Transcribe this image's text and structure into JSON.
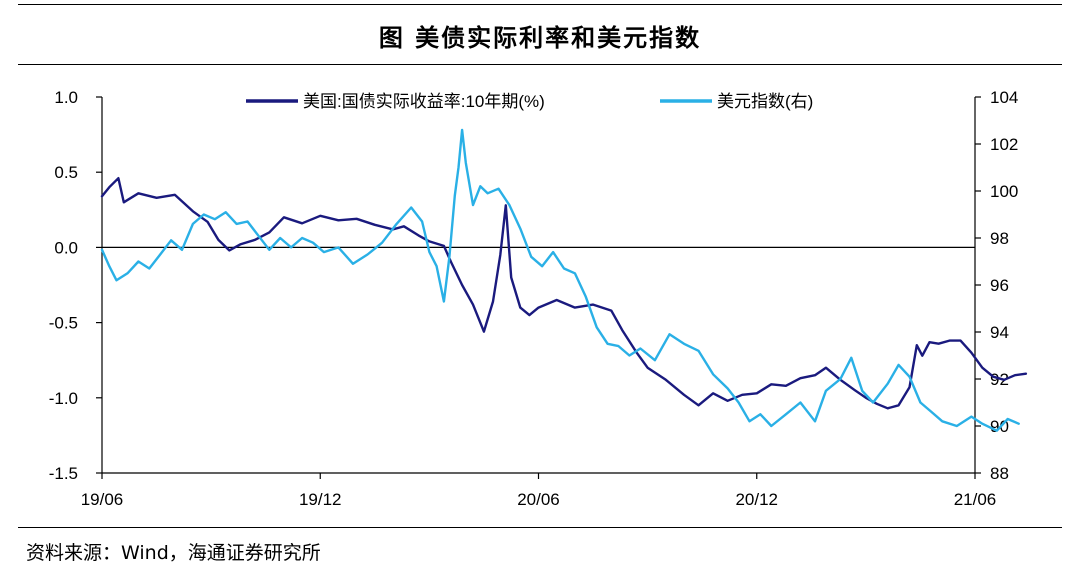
{
  "title": "图  美债实际利率和美元指数",
  "source": "资料来源：Wind，海通证券研究所",
  "chart_data": {
    "type": "line",
    "title": "图  美债实际利率和美元指数",
    "x_ticks": [
      "19/06",
      "19/12",
      "20/06",
      "20/12",
      "21/06"
    ],
    "y_left": {
      "ticks": [
        "1.0",
        "0.5",
        "0.0",
        "-0.5",
        "-1.0",
        "-1.5"
      ],
      "range": [
        -1.5,
        1.0
      ]
    },
    "y_right": {
      "ticks": [
        "104",
        "102",
        "100",
        "98",
        "96",
        "94",
        "92",
        "90",
        "88"
      ],
      "range": [
        88,
        104
      ]
    },
    "grid": false,
    "legend_position": "top",
    "x_range_months": [
      0,
      24
    ],
    "series": [
      {
        "name": "美国:国债实际收益率:10年期(%)",
        "axis": "left",
        "color": "#1a1a7e",
        "points": [
          [
            0.0,
            0.34
          ],
          [
            0.2,
            0.4
          ],
          [
            0.45,
            0.46
          ],
          [
            0.6,
            0.3
          ],
          [
            1.0,
            0.36
          ],
          [
            1.5,
            0.33
          ],
          [
            2.0,
            0.35
          ],
          [
            2.5,
            0.24
          ],
          [
            2.9,
            0.17
          ],
          [
            3.2,
            0.05
          ],
          [
            3.5,
            -0.02
          ],
          [
            3.8,
            0.02
          ],
          [
            4.2,
            0.05
          ],
          [
            4.6,
            0.1
          ],
          [
            5.0,
            0.2
          ],
          [
            5.5,
            0.16
          ],
          [
            6.0,
            0.21
          ],
          [
            6.5,
            0.18
          ],
          [
            7.0,
            0.19
          ],
          [
            7.5,
            0.15
          ],
          [
            8.0,
            0.12
          ],
          [
            8.3,
            0.14
          ],
          [
            8.7,
            0.08
          ],
          [
            9.0,
            0.04
          ],
          [
            9.4,
            0.01
          ],
          [
            9.6,
            -0.1
          ],
          [
            9.9,
            -0.25
          ],
          [
            10.2,
            -0.38
          ],
          [
            10.5,
            -0.56
          ],
          [
            10.75,
            -0.36
          ],
          [
            10.95,
            -0.05
          ],
          [
            11.1,
            0.28
          ],
          [
            11.25,
            -0.2
          ],
          [
            11.5,
            -0.4
          ],
          [
            11.75,
            -0.45
          ],
          [
            12.0,
            -0.4
          ],
          [
            12.5,
            -0.35
          ],
          [
            13.0,
            -0.4
          ],
          [
            13.5,
            -0.38
          ],
          [
            14.0,
            -0.42
          ],
          [
            14.3,
            -0.55
          ],
          [
            14.7,
            -0.7
          ],
          [
            15.0,
            -0.8
          ],
          [
            15.5,
            -0.88
          ],
          [
            16.0,
            -0.98
          ],
          [
            16.4,
            -1.05
          ],
          [
            16.8,
            -0.97
          ],
          [
            17.2,
            -1.02
          ],
          [
            17.6,
            -0.98
          ],
          [
            18.0,
            -0.97
          ],
          [
            18.4,
            -0.91
          ],
          [
            18.8,
            -0.92
          ],
          [
            19.2,
            -0.87
          ],
          [
            19.6,
            -0.85
          ],
          [
            19.9,
            -0.8
          ],
          [
            20.3,
            -0.88
          ],
          [
            20.7,
            -0.95
          ],
          [
            21.0,
            -1.0
          ],
          [
            21.3,
            -1.04
          ],
          [
            21.6,
            -1.07
          ],
          [
            21.9,
            -1.05
          ],
          [
            22.2,
            -0.93
          ],
          [
            22.4,
            -0.65
          ],
          [
            22.55,
            -0.72
          ],
          [
            22.75,
            -0.63
          ],
          [
            23.0,
            -0.64
          ],
          [
            23.3,
            -0.62
          ],
          [
            23.6,
            -0.62
          ],
          [
            23.9,
            -0.7
          ],
          [
            24.2,
            -0.8
          ],
          [
            24.5,
            -0.86
          ],
          [
            24.8,
            -0.88
          ],
          [
            25.1,
            -0.85
          ],
          [
            25.4,
            -0.84
          ]
        ]
      },
      {
        "name": "美元指数(右)",
        "axis": "right",
        "color": "#2ab0e6",
        "points": [
          [
            0.0,
            97.5
          ],
          [
            0.2,
            96.8
          ],
          [
            0.4,
            96.2
          ],
          [
            0.7,
            96.5
          ],
          [
            1.0,
            97.0
          ],
          [
            1.3,
            96.7
          ],
          [
            1.6,
            97.3
          ],
          [
            1.9,
            97.9
          ],
          [
            2.2,
            97.5
          ],
          [
            2.5,
            98.6
          ],
          [
            2.8,
            99.0
          ],
          [
            3.1,
            98.8
          ],
          [
            3.4,
            99.1
          ],
          [
            3.7,
            98.6
          ],
          [
            4.0,
            98.7
          ],
          [
            4.3,
            98.1
          ],
          [
            4.6,
            97.5
          ],
          [
            4.9,
            98.0
          ],
          [
            5.2,
            97.6
          ],
          [
            5.5,
            98.0
          ],
          [
            5.8,
            97.8
          ],
          [
            6.1,
            97.4
          ],
          [
            6.5,
            97.6
          ],
          [
            6.9,
            96.9
          ],
          [
            7.3,
            97.3
          ],
          [
            7.7,
            97.8
          ],
          [
            8.1,
            98.6
          ],
          [
            8.5,
            99.3
          ],
          [
            8.8,
            98.7
          ],
          [
            9.0,
            97.4
          ],
          [
            9.2,
            96.8
          ],
          [
            9.4,
            95.3
          ],
          [
            9.55,
            97.2
          ],
          [
            9.7,
            99.8
          ],
          [
            9.8,
            101.0
          ],
          [
            9.9,
            102.6
          ],
          [
            10.0,
            101.2
          ],
          [
            10.2,
            99.4
          ],
          [
            10.4,
            100.2
          ],
          [
            10.6,
            99.9
          ],
          [
            10.9,
            100.1
          ],
          [
            11.2,
            99.4
          ],
          [
            11.5,
            98.4
          ],
          [
            11.8,
            97.2
          ],
          [
            12.1,
            96.8
          ],
          [
            12.4,
            97.4
          ],
          [
            12.7,
            96.7
          ],
          [
            13.0,
            96.5
          ],
          [
            13.3,
            95.5
          ],
          [
            13.6,
            94.2
          ],
          [
            13.9,
            93.5
          ],
          [
            14.2,
            93.4
          ],
          [
            14.5,
            93.0
          ],
          [
            14.8,
            93.3
          ],
          [
            15.2,
            92.8
          ],
          [
            15.6,
            93.9
          ],
          [
            16.0,
            93.5
          ],
          [
            16.4,
            93.2
          ],
          [
            16.8,
            92.2
          ],
          [
            17.2,
            91.6
          ],
          [
            17.5,
            91.0
          ],
          [
            17.8,
            90.2
          ],
          [
            18.1,
            90.5
          ],
          [
            18.4,
            90.0
          ],
          [
            18.8,
            90.5
          ],
          [
            19.2,
            91.0
          ],
          [
            19.6,
            90.2
          ],
          [
            19.9,
            91.5
          ],
          [
            20.3,
            92.0
          ],
          [
            20.6,
            92.9
          ],
          [
            20.9,
            91.5
          ],
          [
            21.2,
            91.0
          ],
          [
            21.6,
            91.8
          ],
          [
            21.9,
            92.6
          ],
          [
            22.2,
            92.1
          ],
          [
            22.5,
            91.0
          ],
          [
            22.8,
            90.6
          ],
          [
            23.1,
            90.2
          ],
          [
            23.5,
            90.0
          ],
          [
            23.9,
            90.4
          ],
          [
            24.2,
            90.1
          ],
          [
            24.6,
            89.8
          ],
          [
            24.9,
            90.3
          ],
          [
            25.2,
            90.1
          ]
        ]
      }
    ]
  }
}
